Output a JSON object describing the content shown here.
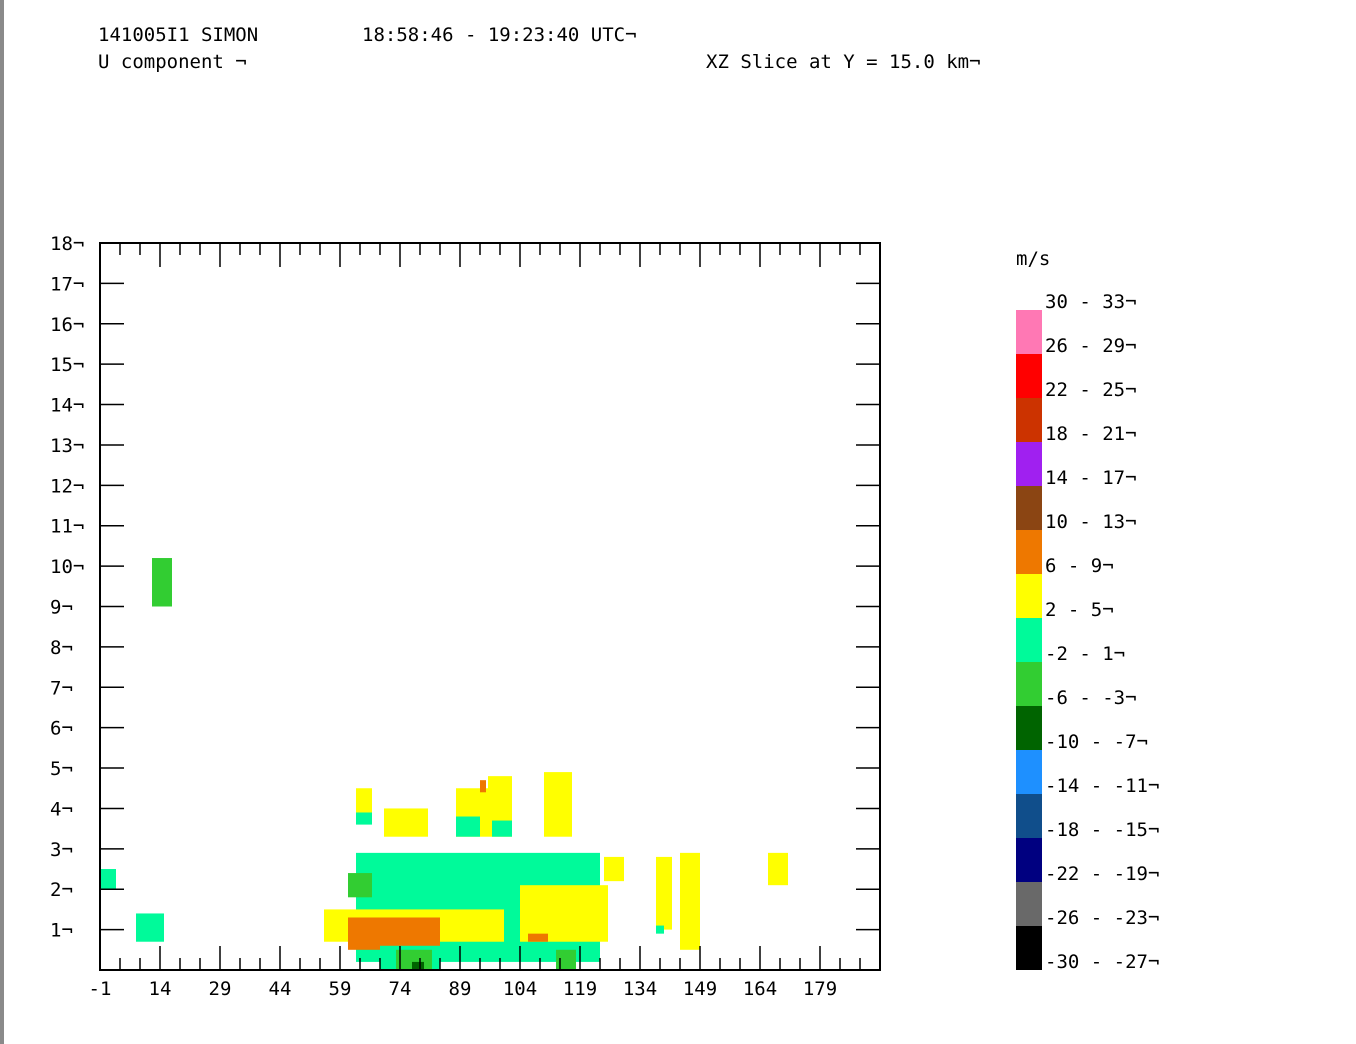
{
  "header": {
    "storm_id": "141005I1 SIMON",
    "time_range": "18:58:46 - 19:23:40 UTC¬",
    "field": "U component ¬",
    "slice": "XZ Slice at Y = 15.0 km¬"
  },
  "chart_data": {
    "type": "heatmap",
    "title": "",
    "xlabel": "",
    "ylabel": "",
    "xlim": [
      -1,
      194
    ],
    "ylim": [
      0,
      18
    ],
    "x_ticks": [
      "-1",
      "14",
      "29",
      "44",
      "59",
      "74",
      "89",
      "104",
      "119",
      "134",
      "149",
      "164",
      "179"
    ],
    "x_tick_values": [
      -1,
      14,
      29,
      44,
      59,
      74,
      89,
      104,
      119,
      134,
      149,
      164,
      179
    ],
    "y_ticks": [
      "1¬",
      "2¬",
      "3¬",
      "4¬",
      "5¬",
      "6¬",
      "7¬",
      "8¬",
      "9¬",
      "10¬",
      "11¬",
      "12¬",
      "13¬",
      "14¬",
      "15¬",
      "16¬",
      "17¬",
      "18¬"
    ],
    "y_tick_values": [
      1,
      2,
      3,
      4,
      5,
      6,
      7,
      8,
      9,
      10,
      11,
      12,
      13,
      14,
      15,
      16,
      17,
      18
    ],
    "legend": {
      "unit": "m/s",
      "placement": "right",
      "bins": [
        {
          "label": "30 - 33¬",
          "color": "#ff78b4"
        },
        {
          "label": "26 - 29¬",
          "color": "#ff0000"
        },
        {
          "label": "22 - 25¬",
          "color": "#cc3300"
        },
        {
          "label": "18 - 21¬",
          "color": "#a020f0"
        },
        {
          "label": "14 - 17¬",
          "color": "#8b4513"
        },
        {
          "label": "10 - 13¬",
          "color": "#ee7800"
        },
        {
          "label": "6 - 9¬",
          "color": "#ffff00"
        },
        {
          "label": "2 - 5¬",
          "color": "#00fa9a"
        },
        {
          "label": "-2 - 1¬",
          "color": "#32cd32"
        },
        {
          "label": "-6 - -3¬",
          "color": "#006400"
        },
        {
          "label": "-10 - -7¬",
          "color": "#1e90ff"
        },
        {
          "label": "-14 - -11¬",
          "color": "#104e8b"
        },
        {
          "label": "-18 - -15¬",
          "color": "#000080"
        },
        {
          "label": "-22 - -19¬",
          "color": "#696969"
        },
        {
          "label": "-26 - -23¬",
          "color": "#000000"
        },
        {
          "label": "-30 - -27¬",
          "color": ""
        }
      ]
    },
    "colors": {
      "pink": "#ff78b4",
      "red": "#ff0000",
      "orange_red": "#cc3300",
      "purple": "#a020f0",
      "brown": "#8b4513",
      "orange": "#ee7800",
      "yellow": "#ffff00",
      "spring_green": "#00fa9a",
      "lime_green": "#32cd32",
      "dark_green": "#006400",
      "dodger_blue": "#1e90ff",
      "steel_blue": "#104e8b",
      "navy": "#000080",
      "gray": "#696969",
      "black": "#000000"
    },
    "regions": [
      {
        "x0": 12,
        "x1": 17,
        "z0": 9.0,
        "z1": 10.2,
        "color": "lime_green"
      },
      {
        "x0": -1,
        "x1": 3,
        "z0": 2.0,
        "z1": 2.5,
        "color": "spring_green"
      },
      {
        "x0": 8,
        "x1": 15,
        "z0": 0.7,
        "z1": 1.4,
        "color": "spring_green"
      },
      {
        "x0": 63,
        "x1": 67,
        "z0": 3.9,
        "z1": 4.5,
        "color": "yellow"
      },
      {
        "x0": 63,
        "x1": 67,
        "z0": 3.6,
        "z1": 3.9,
        "color": "spring_green"
      },
      {
        "x0": 70,
        "x1": 81,
        "z0": 3.3,
        "z1": 4.0,
        "color": "yellow"
      },
      {
        "x0": 88,
        "x1": 96,
        "z0": 3.3,
        "z1": 4.5,
        "color": "yellow"
      },
      {
        "x0": 88,
        "x1": 94,
        "z0": 3.3,
        "z1": 3.8,
        "color": "spring_green"
      },
      {
        "x0": 94,
        "x1": 95.5,
        "z0": 4.4,
        "z1": 4.7,
        "color": "orange"
      },
      {
        "x0": 96,
        "x1": 102,
        "z0": 3.3,
        "z1": 4.8,
        "color": "yellow"
      },
      {
        "x0": 97,
        "x1": 102,
        "z0": 3.3,
        "z1": 3.7,
        "color": "spring_green"
      },
      {
        "x0": 110,
        "x1": 117,
        "z0": 3.3,
        "z1": 4.9,
        "color": "yellow"
      },
      {
        "x0": 125,
        "x1": 130,
        "z0": 2.2,
        "z1": 2.8,
        "color": "yellow"
      },
      {
        "x0": 138,
        "x1": 142,
        "z0": 1.0,
        "z1": 2.8,
        "color": "yellow"
      },
      {
        "x0": 144,
        "x1": 149,
        "z0": 0.5,
        "z1": 2.9,
        "color": "yellow"
      },
      {
        "x0": 166,
        "x1": 171,
        "z0": 2.1,
        "z1": 2.9,
        "color": "yellow"
      },
      {
        "x0": 138,
        "x1": 140,
        "z0": 0.9,
        "z1": 1.1,
        "color": "spring_green"
      },
      {
        "x0": 63,
        "x1": 124,
        "z0": 0.2,
        "z1": 2.9,
        "color": "spring_green"
      },
      {
        "x0": 55,
        "x1": 100,
        "z0": 0.7,
        "z1": 1.5,
        "color": "yellow"
      },
      {
        "x0": 104,
        "x1": 126,
        "z0": 0.7,
        "z1": 2.1,
        "color": "yellow"
      },
      {
        "x0": 61,
        "x1": 84,
        "z0": 0.5,
        "z1": 1.3,
        "color": "orange"
      },
      {
        "x0": 106,
        "x1": 111,
        "z0": 0.7,
        "z1": 0.9,
        "color": "orange"
      },
      {
        "x0": 61,
        "x1": 67,
        "z0": 1.8,
        "z1": 2.4,
        "color": "lime_green"
      },
      {
        "x0": 69,
        "x1": 84,
        "z0": 0.0,
        "z1": 0.6,
        "color": "spring_green"
      },
      {
        "x0": 73,
        "x1": 82,
        "z0": 0.0,
        "z1": 0.5,
        "color": "lime_green"
      },
      {
        "x0": 77,
        "x1": 80,
        "z0": 0.0,
        "z1": 0.2,
        "color": "dark_green"
      },
      {
        "x0": 113,
        "x1": 118,
        "z0": 0.0,
        "z1": 0.5,
        "color": "lime_green"
      }
    ]
  }
}
